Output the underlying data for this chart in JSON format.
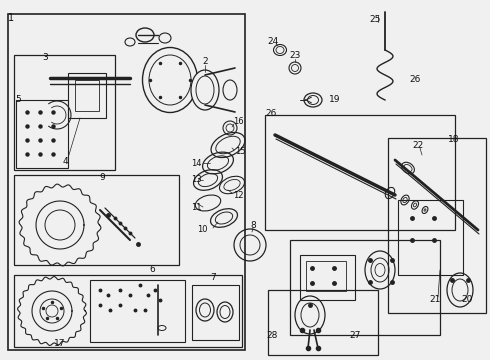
{
  "bg_color": "#f0f0f0",
  "border_color": "#222222",
  "text_color": "#111111",
  "fig_width": 4.9,
  "fig_height": 3.6,
  "dpi": 100
}
